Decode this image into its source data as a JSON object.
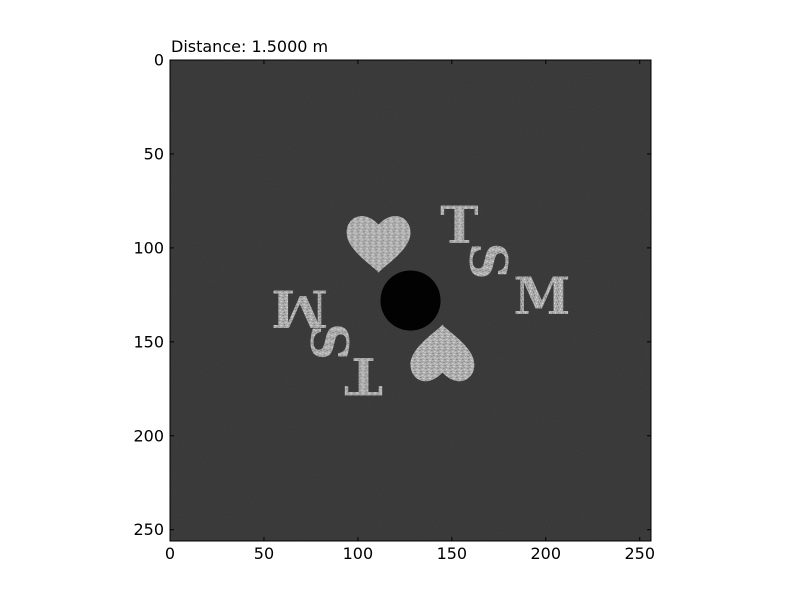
{
  "chart_data": {
    "type": "heatmap",
    "title": "Distance: 1.5000 m",
    "xlabel": "",
    "ylabel": "",
    "xlim": [
      0,
      256
    ],
    "ylim": [
      256,
      0
    ],
    "x_ticks": [
      0,
      50,
      100,
      150,
      200,
      250
    ],
    "y_ticks": [
      0,
      50,
      100,
      150,
      200,
      250
    ],
    "colormap": "gray",
    "background_color": "#161616",
    "feature_color": "#c8c8c8",
    "features": [
      {
        "kind": "heart",
        "label": "heart-upper",
        "center": [
          111,
          97
        ],
        "size": 34,
        "rotation": 0
      },
      {
        "kind": "heart",
        "label": "heart-lower",
        "center": [
          145,
          157
        ],
        "size": 34,
        "rotation": 180
      },
      {
        "kind": "letter",
        "label": "letter-T-upper",
        "text": "T",
        "center": [
          154,
          88
        ],
        "size": 22,
        "rotation": 0
      },
      {
        "kind": "letter",
        "label": "letter-S-upper",
        "text": "S",
        "center": [
          169,
          107
        ],
        "size": 22,
        "rotation": 90
      },
      {
        "kind": "letter",
        "label": "letter-M-upper",
        "text": "M",
        "center": [
          198,
          126
        ],
        "size": 22,
        "rotation": 0
      },
      {
        "kind": "letter",
        "label": "letter-M-lower",
        "text": "M",
        "center": [
          69,
          132
        ],
        "size": 22,
        "rotation": 180
      },
      {
        "kind": "letter",
        "label": "letter-S-lower",
        "text": "S",
        "center": [
          86,
          150
        ],
        "size": 22,
        "rotation": 270
      },
      {
        "kind": "letter",
        "label": "letter-T-lower",
        "text": "T",
        "center": [
          103,
          168
        ],
        "size": 22,
        "rotation": 180
      },
      {
        "kind": "disk",
        "label": "center-disk",
        "center": [
          128,
          128
        ],
        "radius": 16,
        "color": "#020202"
      }
    ]
  }
}
